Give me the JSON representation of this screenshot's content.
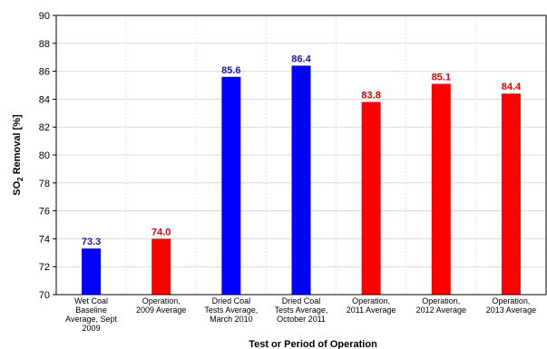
{
  "chart_data": {
    "type": "bar",
    "title": "",
    "xlabel": "Test or Period of Operation",
    "ylabel_main": "SO",
    "ylabel_sub": "2",
    "ylabel_rest": " Removal [%]",
    "ylim": [
      70,
      90
    ],
    "yticks": [
      "70",
      "72",
      "74",
      "76",
      "78",
      "80",
      "82",
      "84",
      "86",
      "88",
      "90"
    ],
    "grid": true,
    "categories": [
      [
        "Wet Coal",
        "Baseline",
        "Average, Sept",
        "2009"
      ],
      [
        "Operation,",
        "2009 Average"
      ],
      [
        "Dried Coal",
        "Tests Average,",
        "March 2010"
      ],
      [
        "Dried Coal",
        "Tests Average,",
        "October 2011"
      ],
      [
        "Operation,",
        "2011 Average"
      ],
      [
        "Operation,",
        "2012 Average"
      ],
      [
        "Operation,",
        "2013 Average"
      ]
    ],
    "values": [
      73.3,
      74.0,
      85.6,
      86.4,
      83.8,
      85.1,
      84.4
    ],
    "value_labels": [
      "73.3",
      "74.0",
      "85.6",
      "86.4",
      "83.8",
      "85.1",
      "84.4"
    ],
    "bar_colors": [
      "#0000ff",
      "#ff0000",
      "#0000ff",
      "#0000ff",
      "#ff0000",
      "#ff0000",
      "#ff0000"
    ],
    "label_colors": [
      "#1a1aa6",
      "#e00000",
      "#1a1aa6",
      "#1a1aa6",
      "#e00000",
      "#e00000",
      "#e00000"
    ]
  }
}
